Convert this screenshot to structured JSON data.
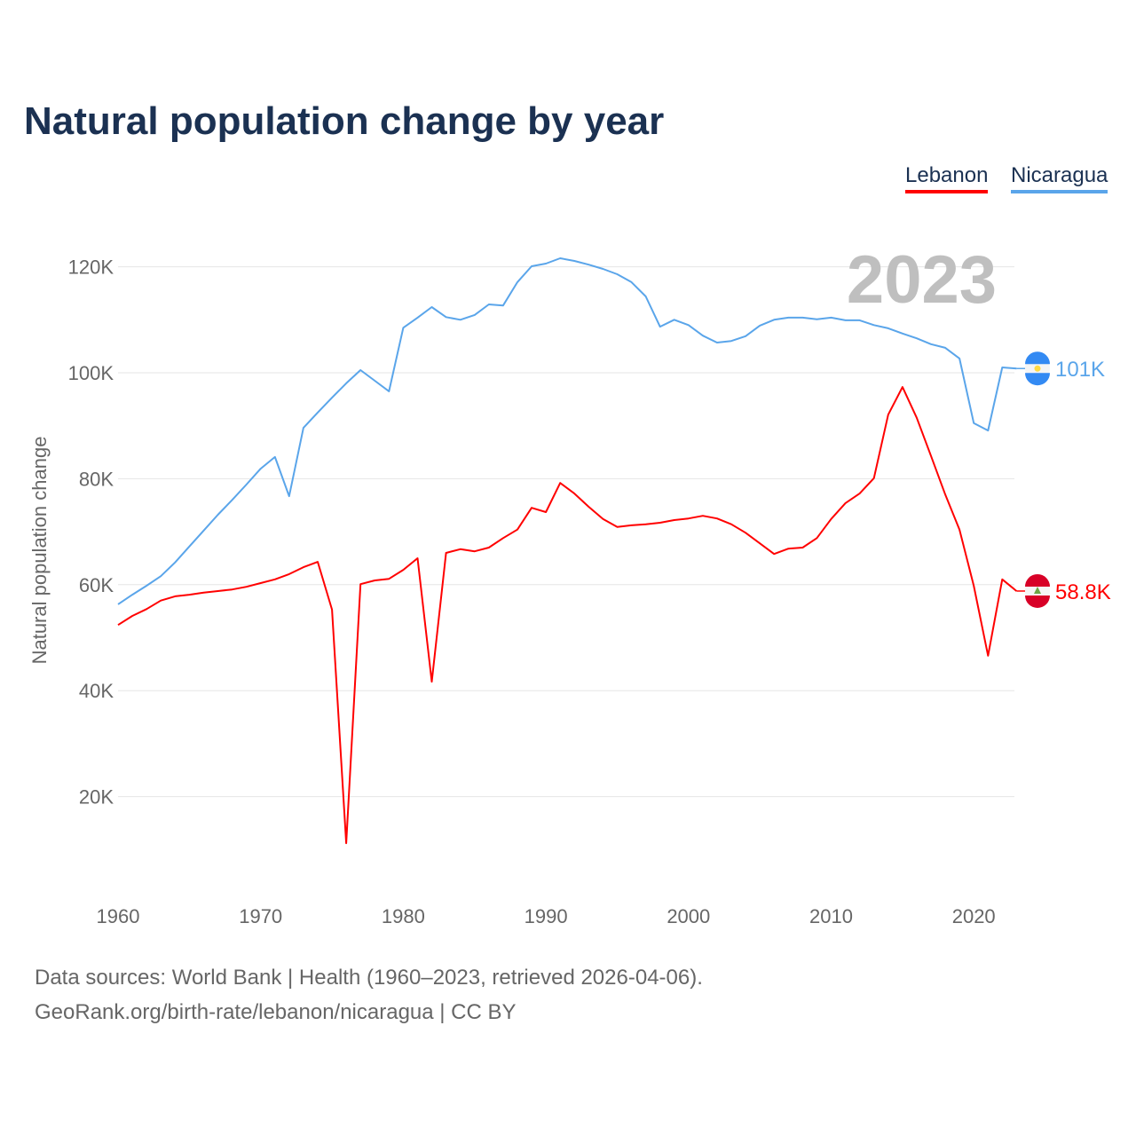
{
  "chart_data": {
    "type": "line",
    "title": "Natural population change by year",
    "xlabel": "",
    "ylabel": "Natural population change",
    "year_watermark": "2023",
    "xlim": [
      1960,
      2023
    ],
    "ylim": [
      0,
      130000
    ],
    "x_ticks": [
      1960,
      1970,
      1980,
      1990,
      2000,
      2010,
      2020
    ],
    "x_tick_labels": [
      "1960",
      "1970",
      "1980",
      "1990",
      "2000",
      "2010",
      "2020"
    ],
    "y_ticks": [
      20000,
      40000,
      60000,
      80000,
      100000,
      120000
    ],
    "y_tick_labels": [
      "20K",
      "40K",
      "60K",
      "80K",
      "100K",
      "120K"
    ],
    "grid": true,
    "legend_placement": "top-right",
    "x": [
      1960,
      1961,
      1962,
      1963,
      1964,
      1965,
      1966,
      1967,
      1968,
      1969,
      1970,
      1971,
      1972,
      1973,
      1974,
      1975,
      1976,
      1977,
      1978,
      1979,
      1980,
      1981,
      1982,
      1983,
      1984,
      1985,
      1986,
      1987,
      1988,
      1989,
      1990,
      1991,
      1992,
      1993,
      1994,
      1995,
      1996,
      1997,
      1998,
      1999,
      2000,
      2001,
      2002,
      2003,
      2004,
      2005,
      2006,
      2007,
      2008,
      2009,
      2010,
      2011,
      2012,
      2013,
      2014,
      2015,
      2016,
      2017,
      2018,
      2019,
      2020,
      2021,
      2022,
      2023
    ],
    "series": [
      {
        "name": "Lebanon",
        "color": "#ff0000",
        "end_label": "58.8K",
        "flag": "lebanon-flag",
        "values": [
          52400,
          54100,
          55400,
          57000,
          57800,
          58100,
          58500,
          58800,
          59100,
          59600,
          60300,
          61000,
          62000,
          63300,
          64300,
          55300,
          11200,
          60100,
          60800,
          61100,
          62800,
          65000,
          41700,
          66000,
          66700,
          66300,
          67000,
          68800,
          70400,
          74500,
          73700,
          79200,
          77200,
          74700,
          72400,
          70900,
          71200,
          71400,
          71700,
          72200,
          72500,
          73000,
          72500,
          71400,
          69800,
          67800,
          65800,
          66800,
          67000,
          68800,
          72400,
          75400,
          77200,
          80100,
          92100,
          97300,
          91500,
          84300,
          77000,
          70400,
          59800,
          46600,
          61000,
          58800
        ]
      },
      {
        "name": "Nicaragua",
        "color": "#5aa5ea",
        "end_label": "101K",
        "flag": "nicaragua-flag",
        "values": [
          56300,
          58100,
          59800,
          61600,
          64200,
          67200,
          70200,
          73200,
          76000,
          78900,
          81900,
          84100,
          76700,
          89600,
          92500,
          95300,
          98000,
          100500,
          98500,
          96500,
          108500,
          110400,
          112400,
          110500,
          110000,
          110900,
          112900,
          112700,
          117100,
          120100,
          120600,
          121600,
          121100,
          120400,
          119600,
          118600,
          117100,
          114400,
          108700,
          110000,
          109000,
          107000,
          105700,
          106000,
          106900,
          108900,
          110000,
          110400,
          110400,
          110100,
          110400,
          109900,
          109900,
          109000,
          108400,
          107400,
          106500,
          105400,
          104700,
          102700,
          90500,
          89100,
          101000,
          100800
        ]
      }
    ]
  },
  "footer": {
    "sources": "Data sources: World Bank | Health (1960–2023, retrieved 2026-04-06).",
    "credit": "GeoRank.org/birth-rate/lebanon/nicaragua | CC BY"
  }
}
